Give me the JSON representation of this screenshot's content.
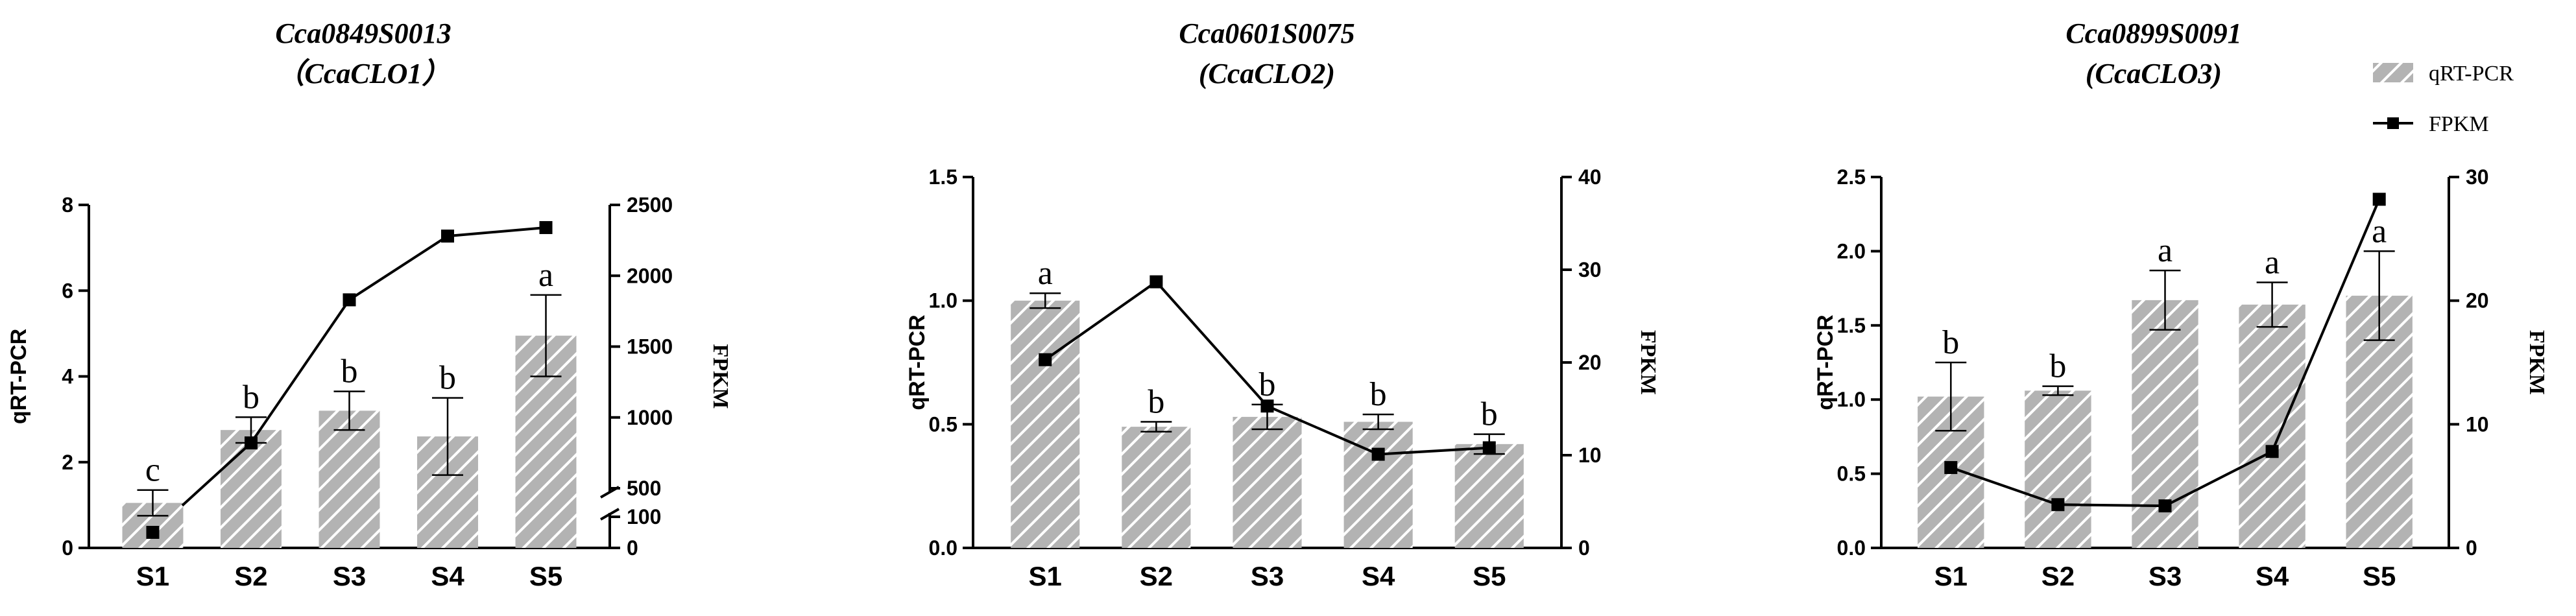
{
  "legend": {
    "bar_label": "qRT-PCR",
    "line_label": "FPKM"
  },
  "colors": {
    "bar_fill": "#b3b3b3",
    "bar_hatch": "#ffffff",
    "line": "#000000",
    "axis": "#000000"
  },
  "chart_data": [
    {
      "type": "bar",
      "title_line1": "Cca0849S0013",
      "title_line2": "（CcaCLO1）",
      "categories": [
        "S1",
        "S2",
        "S3",
        "S4",
        "S5"
      ],
      "ylabel": "qRT-PCR",
      "y2label": "FPKM",
      "ylim": [
        0,
        8
      ],
      "yticks": [
        "0",
        "2",
        "4",
        "6",
        "8"
      ],
      "y2lim": [
        0,
        2500
      ],
      "y2ticks": [
        "0",
        "100",
        "500",
        "1000",
        "1500",
        "2000",
        "2500"
      ],
      "y2_axis_break": [
        100,
        500
      ],
      "series": [
        {
          "name": "qRT-PCR",
          "values": [
            1.05,
            2.75,
            3.2,
            2.6,
            4.95
          ],
          "errors": [
            0.3,
            0.3,
            0.45,
            0.9,
            0.95
          ],
          "significance": [
            "c",
            "b",
            "b",
            "b",
            "a"
          ]
        },
        {
          "name": "FPKM",
          "values": [
            50,
            820,
            1830,
            2280,
            2340
          ]
        }
      ]
    },
    {
      "type": "bar",
      "title_line1": "Cca0601S0075",
      "title_line2": "(CcaCLO2)",
      "categories": [
        "S1",
        "S2",
        "S3",
        "S4",
        "S5"
      ],
      "ylabel": "qRT-PCR",
      "y2label": "FPKM",
      "ylim": [
        0,
        1.5
      ],
      "yticks": [
        "0.0",
        "0.5",
        "1.0",
        "1.5"
      ],
      "y2lim": [
        0,
        40
      ],
      "y2ticks": [
        "0",
        "10",
        "20",
        "30",
        "40"
      ],
      "series": [
        {
          "name": "qRT-PCR",
          "values": [
            1.0,
            0.49,
            0.53,
            0.51,
            0.42
          ],
          "errors": [
            0.03,
            0.02,
            0.05,
            0.03,
            0.04
          ],
          "significance": [
            "a",
            "b",
            "b",
            "b",
            "b"
          ]
        },
        {
          "name": "FPKM",
          "values": [
            20.3,
            28.7,
            15.3,
            10.1,
            10.8
          ]
        }
      ]
    },
    {
      "type": "bar",
      "title_line1": "Cca0899S0091",
      "title_line2": "(CcaCLO3)",
      "categories": [
        "S1",
        "S2",
        "S3",
        "S4",
        "S5"
      ],
      "ylabel": "qRT-PCR",
      "y2label": "FPKM",
      "ylim": [
        0,
        2.5
      ],
      "yticks": [
        "0.0",
        "0.5",
        "1.0",
        "1.5",
        "2.0",
        "2.5"
      ],
      "y2lim": [
        0,
        30
      ],
      "y2ticks": [
        "0",
        "10",
        "20",
        "30"
      ],
      "series": [
        {
          "name": "qRT-PCR",
          "values": [
            1.02,
            1.06,
            1.67,
            1.64,
            1.7
          ],
          "errors": [
            0.23,
            0.03,
            0.2,
            0.15,
            0.3
          ],
          "significance": [
            "b",
            "b",
            "a",
            "a",
            "a"
          ]
        },
        {
          "name": "FPKM",
          "values": [
            6.5,
            3.5,
            3.4,
            7.8,
            28.2
          ]
        }
      ]
    }
  ]
}
